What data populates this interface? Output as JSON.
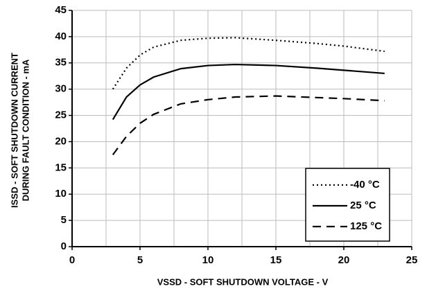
{
  "chart_data": {
    "type": "line",
    "xlabel": "VSSD - SOFT SHUTDOWN VOLTAGE - V",
    "ylabel": [
      "ISSD - SOFT SHUTDOWN CURRENT",
      "DURING FAULT CONDITION - mA"
    ],
    "x": [
      3,
      4,
      5,
      6,
      8,
      10,
      12,
      15,
      18,
      20,
      23
    ],
    "series": [
      {
        "name": "-40 °C",
        "color": "#000000",
        "dash": "dotted",
        "values": [
          30,
          34,
          36.5,
          38,
          39.3,
          39.7,
          39.8,
          39.3,
          38.7,
          38.2,
          37.2
        ]
      },
      {
        "name": "25 °C",
        "color": "#000000",
        "dash": "solid",
        "values": [
          24.2,
          28.5,
          30.8,
          32.3,
          33.9,
          34.5,
          34.7,
          34.5,
          34,
          33.6,
          33
        ]
      },
      {
        "name": "125 °C",
        "color": "#000000",
        "dash": "dashed",
        "values": [
          17.5,
          21,
          23.5,
          25.2,
          27.2,
          28,
          28.5,
          28.7,
          28.4,
          28.2,
          27.8
        ]
      }
    ],
    "xlim": [
      0,
      25
    ],
    "xticks": [
      0,
      5,
      10,
      15,
      20,
      25
    ],
    "xminorticks": [
      2.5,
      7.5,
      12.5,
      17.5,
      22.5
    ],
    "ylim": [
      0,
      45
    ],
    "yticks": [
      0,
      5,
      10,
      15,
      20,
      25,
      30,
      35,
      40,
      45
    ],
    "grid": true,
    "legend": "lower right"
  }
}
